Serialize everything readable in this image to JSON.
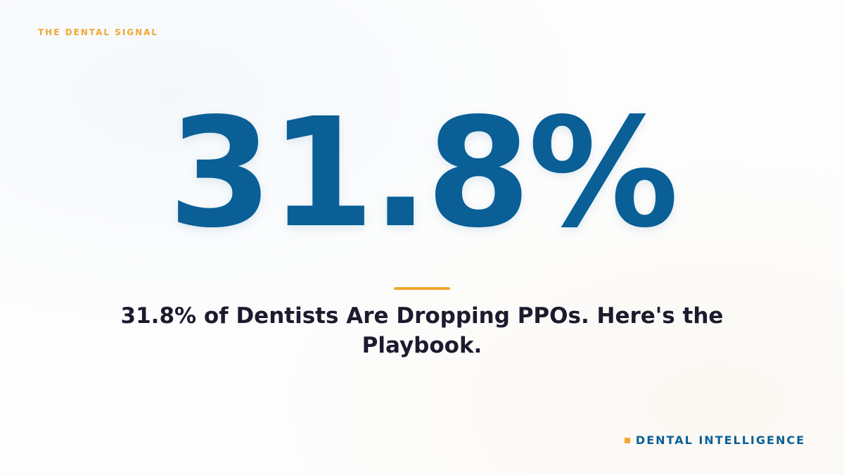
{
  "kicker": "THE DENTAL SIGNAL",
  "stat": "31.8%",
  "headline": "31.8% of Dentists Are Dropping PPOs. Here's the Playbook.",
  "brand": "DENTAL INTELLIGENCE"
}
